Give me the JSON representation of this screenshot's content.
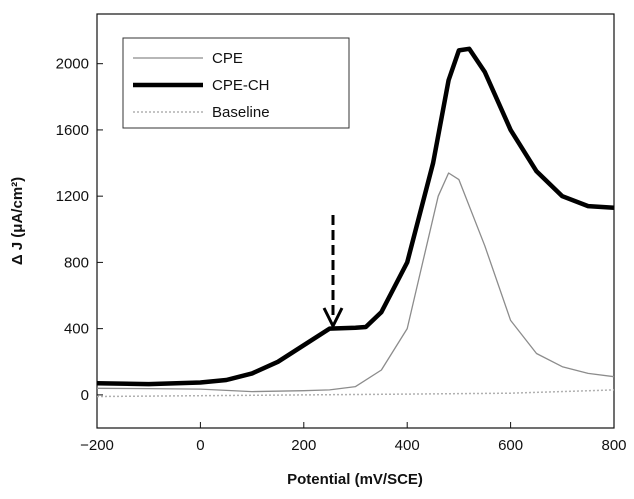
{
  "chart_data": {
    "type": "line",
    "x_label": "Potential (mV/SCE)",
    "y_label": "Δ J (μA/cm²)",
    "xlim": [
      -200,
      800
    ],
    "xticks": [
      {
        "value": -200,
        "label": "−200"
      },
      0,
      200,
      400,
      600,
      800
    ],
    "ylim": [
      -200,
      2300
    ],
    "yticks": [
      0,
      400,
      800,
      1200,
      1600,
      2000
    ],
    "legend": "upper left",
    "series": [
      {
        "name": "CPE",
        "color": "#8c8c8c",
        "style": "thin",
        "x": [
          -200,
          -100,
          0,
          100,
          200,
          250,
          300,
          350,
          400,
          430,
          460,
          480,
          500,
          550,
          600,
          650,
          700,
          750,
          800
        ],
        "values": [
          40,
          38,
          35,
          20,
          25,
          30,
          50,
          150,
          400,
          800,
          1200,
          1340,
          1300,
          900,
          450,
          250,
          170,
          130,
          110
        ]
      },
      {
        "name": "CPE-CH",
        "color": "#000000",
        "style": "thick",
        "x": [
          -200,
          -100,
          0,
          50,
          100,
          150,
          200,
          250,
          300,
          320,
          350,
          400,
          450,
          480,
          500,
          520,
          550,
          600,
          650,
          700,
          750,
          800
        ],
        "values": [
          70,
          65,
          75,
          90,
          130,
          200,
          300,
          400,
          405,
          410,
          500,
          800,
          1400,
          1900,
          2080,
          2090,
          1950,
          1600,
          1350,
          1200,
          1140,
          1130
        ]
      },
      {
        "name": "Baseline",
        "color": "#b0b0b0",
        "style": "dotted",
        "x": [
          -200,
          0,
          200,
          400,
          600,
          800
        ],
        "values": [
          -10,
          -5,
          0,
          5,
          10,
          30
        ]
      }
    ]
  }
}
